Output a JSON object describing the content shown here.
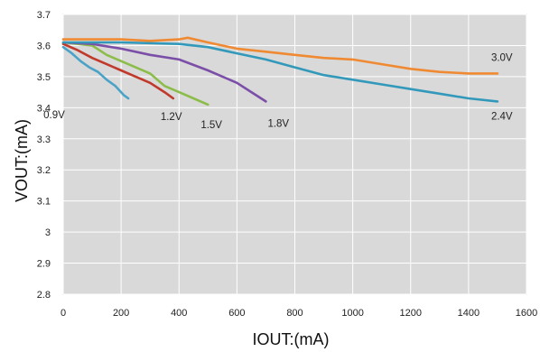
{
  "chart_data": {
    "type": "line",
    "xlabel": "IOUT:(mA)",
    "ylabel": "VOUT:(mA)",
    "xlim": [
      0,
      1600
    ],
    "ylim": [
      2.8,
      3.7
    ],
    "x_ticks": [
      "0",
      "200",
      "400",
      "600",
      "800",
      "1000",
      "1200",
      "1400",
      "1600"
    ],
    "y_ticks": [
      "3.7",
      "3.6",
      "3.5",
      "3.4",
      "3.3",
      "3.2",
      "3.1",
      "3",
      "2.9",
      "2.8"
    ],
    "grid": true,
    "plot_background": "#d9d9d9",
    "grid_color": "#ffffff",
    "series": [
      {
        "name": "0.9V",
        "color": "#4aa3c7",
        "points": [
          [
            0,
            3.595
          ],
          [
            30,
            3.575
          ],
          [
            60,
            3.55
          ],
          [
            90,
            3.53
          ],
          [
            120,
            3.515
          ],
          [
            150,
            3.49
          ],
          [
            180,
            3.47
          ],
          [
            210,
            3.44
          ],
          [
            225,
            3.43
          ]
        ]
      },
      {
        "name": "1.2V",
        "color": "#c0392b",
        "points": [
          [
            0,
            3.605
          ],
          [
            50,
            3.585
          ],
          [
            100,
            3.56
          ],
          [
            150,
            3.54
          ],
          [
            200,
            3.52
          ],
          [
            250,
            3.5
          ],
          [
            300,
            3.48
          ],
          [
            350,
            3.45
          ],
          [
            380,
            3.43
          ]
        ]
      },
      {
        "name": "1.5V",
        "color": "#8cbd4a",
        "points": [
          [
            0,
            3.61
          ],
          [
            100,
            3.6
          ],
          [
            150,
            3.57
          ],
          [
            200,
            3.55
          ],
          [
            250,
            3.53
          ],
          [
            300,
            3.51
          ],
          [
            350,
            3.47
          ],
          [
            400,
            3.45
          ],
          [
            450,
            3.43
          ],
          [
            500,
            3.41
          ]
        ]
      },
      {
        "name": "1.8V",
        "color": "#7b4fa8",
        "points": [
          [
            0,
            3.61
          ],
          [
            100,
            3.605
          ],
          [
            200,
            3.59
          ],
          [
            300,
            3.57
          ],
          [
            400,
            3.555
          ],
          [
            500,
            3.52
          ],
          [
            600,
            3.48
          ],
          [
            650,
            3.45
          ],
          [
            700,
            3.42
          ]
        ]
      },
      {
        "name": "2.4V",
        "color": "#3399bb",
        "points": [
          [
            0,
            3.61
          ],
          [
            200,
            3.61
          ],
          [
            400,
            3.605
          ],
          [
            500,
            3.595
          ],
          [
            600,
            3.575
          ],
          [
            700,
            3.555
          ],
          [
            800,
            3.53
          ],
          [
            900,
            3.505
          ],
          [
            1000,
            3.49
          ],
          [
            1100,
            3.475
          ],
          [
            1200,
            3.46
          ],
          [
            1300,
            3.445
          ],
          [
            1400,
            3.43
          ],
          [
            1500,
            3.42
          ]
        ]
      },
      {
        "name": "3.0V",
        "color": "#f08a32",
        "points": [
          [
            0,
            3.62
          ],
          [
            200,
            3.62
          ],
          [
            300,
            3.615
          ],
          [
            400,
            3.62
          ],
          [
            430,
            3.625
          ],
          [
            500,
            3.61
          ],
          [
            600,
            3.59
          ],
          [
            700,
            3.58
          ],
          [
            800,
            3.57
          ],
          [
            900,
            3.56
          ],
          [
            1000,
            3.555
          ],
          [
            1100,
            3.54
          ],
          [
            1200,
            3.525
          ],
          [
            1300,
            3.515
          ],
          [
            1400,
            3.51
          ],
          [
            1500,
            3.51
          ]
        ]
      }
    ]
  }
}
